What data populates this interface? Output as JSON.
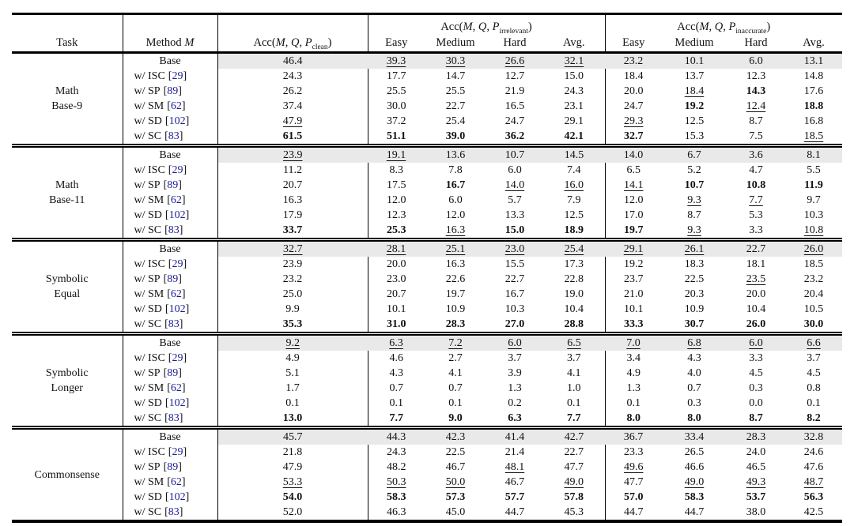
{
  "colors": {
    "citation": "#1d1d96",
    "base_row_bg": "#e9e9e9",
    "rule": "#000000"
  },
  "header": {
    "task": "Task",
    "method_prefix": "Method",
    "method_symbol": "M",
    "acc": "Acc",
    "open": "(",
    "sep": ", ",
    "close": ")",
    "m": "M",
    "q": "Q",
    "p": "P",
    "clean_sub": "clean",
    "irrelevant_sub": "irrelevant",
    "inaccurate_sub": "inaccurate",
    "sub_columns": [
      "Easy",
      "Medium",
      "Hard",
      "Avg."
    ]
  },
  "format_legend": {
    "b": "best value (bold)",
    "u": "second-best value (underlined)"
  },
  "value_columns_order": [
    "clean",
    "irrelevant Easy",
    "irrelevant Medium",
    "irrelevant Hard",
    "irrelevant Avg.",
    "inaccurate Easy",
    "inaccurate Medium",
    "inaccurate Hard",
    "inaccurate Avg."
  ],
  "tasks": [
    {
      "name_lines": [
        "Math",
        "Base-9"
      ],
      "rows": [
        {
          "method": "Base",
          "cite": null,
          "base": true,
          "values": [
            "46.4",
            "u:39.3",
            "u:30.3",
            "u:26.6",
            "u:32.1",
            "23.2",
            "10.1",
            "6.0",
            "13.1"
          ]
        },
        {
          "method": "w/ ISC",
          "cite": "29",
          "base": false,
          "values": [
            "24.3",
            "17.7",
            "14.7",
            "12.7",
            "15.0",
            "18.4",
            "13.7",
            "12.3",
            "14.8"
          ]
        },
        {
          "method": "w/ SP",
          "cite": "89",
          "base": false,
          "values": [
            "26.2",
            "25.5",
            "25.5",
            "21.9",
            "24.3",
            "20.0",
            "u:18.4",
            "b:14.3",
            "17.6"
          ]
        },
        {
          "method": "w/ SM",
          "cite": "62",
          "base": false,
          "values": [
            "37.4",
            "30.0",
            "22.7",
            "16.5",
            "23.1",
            "24.7",
            "b:19.2",
            "u:12.4",
            "b:18.8"
          ]
        },
        {
          "method": "w/ SD",
          "cite": "102",
          "base": false,
          "values": [
            "u:47.9",
            "37.2",
            "25.4",
            "24.7",
            "29.1",
            "u:29.3",
            "12.5",
            "8.7",
            "16.8"
          ]
        },
        {
          "method": "w/ SC",
          "cite": "83",
          "base": false,
          "values": [
            "b:61.5",
            "b:51.1",
            "b:39.0",
            "b:36.2",
            "b:42.1",
            "b:32.7",
            "15.3",
            "7.5",
            "u:18.5"
          ]
        }
      ]
    },
    {
      "name_lines": [
        "Math",
        "Base-11"
      ],
      "rows": [
        {
          "method": "Base",
          "cite": null,
          "base": true,
          "values": [
            "u:23.9",
            "u:19.1",
            "13.6",
            "10.7",
            "14.5",
            "14.0",
            "6.7",
            "3.6",
            "8.1"
          ]
        },
        {
          "method": "w/ ISC",
          "cite": "29",
          "base": false,
          "values": [
            "11.2",
            "8.3",
            "7.8",
            "6.0",
            "7.4",
            "6.5",
            "5.2",
            "4.7",
            "5.5"
          ]
        },
        {
          "method": "w/ SP",
          "cite": "89",
          "base": false,
          "values": [
            "20.7",
            "17.5",
            "b:16.7",
            "u:14.0",
            "u:16.0",
            "u:14.1",
            "b:10.7",
            "b:10.8",
            "b:11.9"
          ]
        },
        {
          "method": "w/ SM",
          "cite": "62",
          "base": false,
          "values": [
            "16.3",
            "12.0",
            "6.0",
            "5.7",
            "7.9",
            "12.0",
            "u:9.3",
            "u:7.7",
            "9.7"
          ]
        },
        {
          "method": "w/ SD",
          "cite": "102",
          "base": false,
          "values": [
            "17.9",
            "12.3",
            "12.0",
            "13.3",
            "12.5",
            "17.0",
            "8.7",
            "5.3",
            "10.3"
          ]
        },
        {
          "method": "w/ SC",
          "cite": "83",
          "base": false,
          "values": [
            "b:33.7",
            "b:25.3",
            "u:16.3",
            "b:15.0",
            "b:18.9",
            "b:19.7",
            "u:9.3",
            "3.3",
            "u:10.8"
          ]
        }
      ]
    },
    {
      "name_lines": [
        "Symbolic",
        "Equal"
      ],
      "rows": [
        {
          "method": "Base",
          "cite": null,
          "base": true,
          "values": [
            "u:32.7",
            "u:28.1",
            "u:25.1",
            "u:23.0",
            "u:25.4",
            "u:29.1",
            "u:26.1",
            "22.7",
            "u:26.0"
          ]
        },
        {
          "method": "w/ ISC",
          "cite": "29",
          "base": false,
          "values": [
            "23.9",
            "20.0",
            "16.3",
            "15.5",
            "17.3",
            "19.2",
            "18.3",
            "18.1",
            "18.5"
          ]
        },
        {
          "method": "w/ SP",
          "cite": "89",
          "base": false,
          "values": [
            "23.2",
            "23.0",
            "22.6",
            "22.7",
            "22.8",
            "23.7",
            "22.5",
            "u:23.5",
            "23.2"
          ]
        },
        {
          "method": "w/ SM",
          "cite": "62",
          "base": false,
          "values": [
            "25.0",
            "20.7",
            "19.7",
            "16.7",
            "19.0",
            "21.0",
            "20.3",
            "20.0",
            "20.4"
          ]
        },
        {
          "method": "w/ SD",
          "cite": "102",
          "base": false,
          "values": [
            "9.9",
            "10.1",
            "10.9",
            "10.3",
            "10.4",
            "10.1",
            "10.9",
            "10.4",
            "10.5"
          ]
        },
        {
          "method": "w/ SC",
          "cite": "83",
          "base": false,
          "values": [
            "b:35.3",
            "b:31.0",
            "b:28.3",
            "b:27.0",
            "b:28.8",
            "b:33.3",
            "b:30.7",
            "b:26.0",
            "b:30.0"
          ]
        }
      ]
    },
    {
      "name_lines": [
        "Symbolic",
        "Longer"
      ],
      "rows": [
        {
          "method": "Base",
          "cite": null,
          "base": true,
          "values": [
            "u:9.2",
            "u:6.3",
            "u:7.2",
            "u:6.0",
            "u:6.5",
            "u:7.0",
            "u:6.8",
            "u:6.0",
            "u:6.6"
          ]
        },
        {
          "method": "w/ ISC",
          "cite": "29",
          "base": false,
          "values": [
            "4.9",
            "4.6",
            "2.7",
            "3.7",
            "3.7",
            "3.4",
            "4.3",
            "3.3",
            "3.7"
          ]
        },
        {
          "method": "w/ SP",
          "cite": "89",
          "base": false,
          "values": [
            "5.1",
            "4.3",
            "4.1",
            "3.9",
            "4.1",
            "4.9",
            "4.0",
            "4.5",
            "4.5"
          ]
        },
        {
          "method": "w/ SM",
          "cite": "62",
          "base": false,
          "values": [
            "1.7",
            "0.7",
            "0.7",
            "1.3",
            "1.0",
            "1.3",
            "0.7",
            "0.3",
            "0.8"
          ]
        },
        {
          "method": "w/ SD",
          "cite": "102",
          "base": false,
          "values": [
            "0.1",
            "0.1",
            "0.1",
            "0.2",
            "0.1",
            "0.1",
            "0.3",
            "0.0",
            "0.1"
          ]
        },
        {
          "method": "w/ SC",
          "cite": "83",
          "base": false,
          "values": [
            "b:13.0",
            "b:7.7",
            "b:9.0",
            "b:6.3",
            "b:7.7",
            "b:8.0",
            "b:8.0",
            "b:8.7",
            "b:8.2"
          ]
        }
      ]
    },
    {
      "name_lines": [
        "Commonsense"
      ],
      "rows": [
        {
          "method": "Base",
          "cite": null,
          "base": true,
          "values": [
            "45.7",
            "44.3",
            "42.3",
            "41.4",
            "42.7",
            "36.7",
            "33.4",
            "28.3",
            "32.8"
          ]
        },
        {
          "method": "w/ ISC",
          "cite": "29",
          "base": false,
          "values": [
            "21.8",
            "24.3",
            "22.5",
            "21.4",
            "22.7",
            "23.3",
            "26.5",
            "24.0",
            "24.6"
          ]
        },
        {
          "method": "w/ SP",
          "cite": "89",
          "base": false,
          "values": [
            "47.9",
            "48.2",
            "46.7",
            "u:48.1",
            "47.7",
            "u:49.6",
            "46.6",
            "46.5",
            "47.6"
          ]
        },
        {
          "method": "w/ SM",
          "cite": "62",
          "base": false,
          "values": [
            "u:53.3",
            "u:50.3",
            "u:50.0",
            "46.7",
            "u:49.0",
            "47.7",
            "u:49.0",
            "u:49.3",
            "u:48.7"
          ]
        },
        {
          "method": "w/ SD",
          "cite": "102",
          "base": false,
          "values": [
            "b:54.0",
            "b:58.3",
            "b:57.3",
            "b:57.7",
            "b:57.8",
            "b:57.0",
            "b:58.3",
            "b:53.7",
            "b:56.3"
          ]
        },
        {
          "method": "w/ SC",
          "cite": "83",
          "base": false,
          "values": [
            "52.0",
            "46.3",
            "45.0",
            "44.7",
            "45.3",
            "44.7",
            "44.7",
            "38.0",
            "42.5"
          ]
        }
      ]
    }
  ]
}
